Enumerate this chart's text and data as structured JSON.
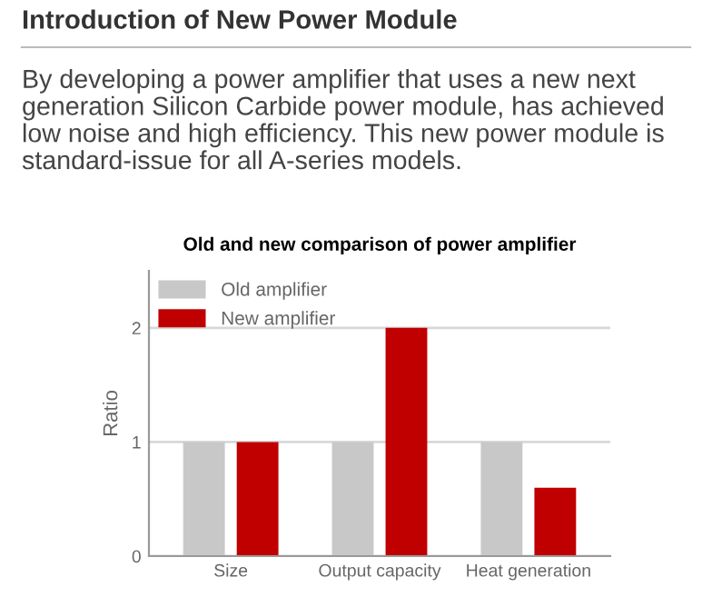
{
  "chart_data": {
    "type": "bar",
    "title": "Old and new comparison of power amplifier",
    "ylabel": "Ratio",
    "annotations": [
      "Introduction of New Power Module",
      "By developing a power amplifier that uses a new next generation Silicon Carbide power module, has achieved low noise and high efficiency. This new power module is standard-issue for all A-series models."
    ],
    "categories": [
      "Size",
      "Output capacity",
      "Heat generation"
    ],
    "series": [
      {
        "name": "Old amplifier",
        "color": "#c8c8c8",
        "values": [
          1,
          1,
          1
        ]
      },
      {
        "name": "New amplifier",
        "color": "#c00000",
        "values": [
          1,
          2,
          0.6
        ]
      }
    ],
    "ylim": [
      0,
      2.5
    ],
    "yticks": [
      0,
      1,
      2
    ],
    "grid": "y",
    "legend": "top left"
  }
}
